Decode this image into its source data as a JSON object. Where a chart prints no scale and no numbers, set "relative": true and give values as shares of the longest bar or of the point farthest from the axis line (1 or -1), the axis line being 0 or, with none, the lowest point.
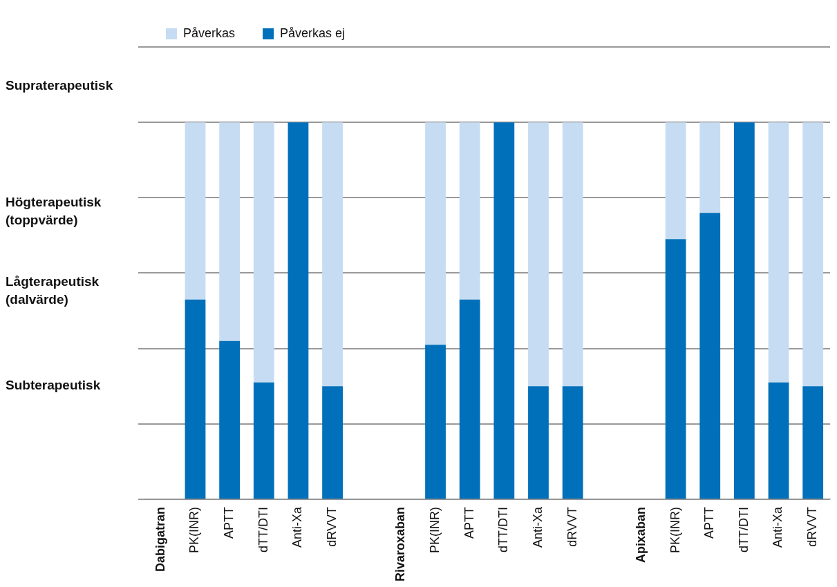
{
  "chart_data": {
    "type": "bar",
    "stacked": true,
    "relative": true,
    "grid": "y",
    "legend": "top",
    "categories": [
      "Dabigatran",
      "PK(INR)",
      "APTT",
      "dTT/DTI",
      "Anti-Xa",
      "dRVVT",
      null,
      "Rivaroxaban",
      "PK(INR)",
      "APTT",
      "dTT/DTI",
      "Anti-Xa",
      "dRVVT",
      null,
      "Apixaban",
      "PK(INR)",
      "APTT",
      "dTT/DTI",
      "Anti-Xa",
      "dRVVT"
    ],
    "series": [
      {
        "name": "Påverkas ej",
        "color": "#0070ba",
        "values": [
          null,
          0.53,
          0.42,
          0.31,
          1,
          0.3,
          null,
          null,
          0.41,
          0.53,
          1,
          0.3,
          0.3,
          null,
          null,
          0.69,
          0.76,
          1,
          0.31,
          0.3
        ]
      },
      {
        "name": "Påverkas",
        "color": "#c6dcf2",
        "values": [
          null,
          0.47,
          0.58,
          0.69,
          0,
          0.7,
          null,
          null,
          0.59,
          0.47,
          0,
          0.7,
          0.7,
          null,
          null,
          0.31,
          0.24,
          0,
          0.69,
          0.7
        ]
      }
    ],
    "annotations": [
      "Supraterapeutisk",
      "Högterapeutisk\n(toppvärde)",
      "Lågterapeutisk\n(dalvärde)",
      "Subterapeutisk"
    ]
  }
}
